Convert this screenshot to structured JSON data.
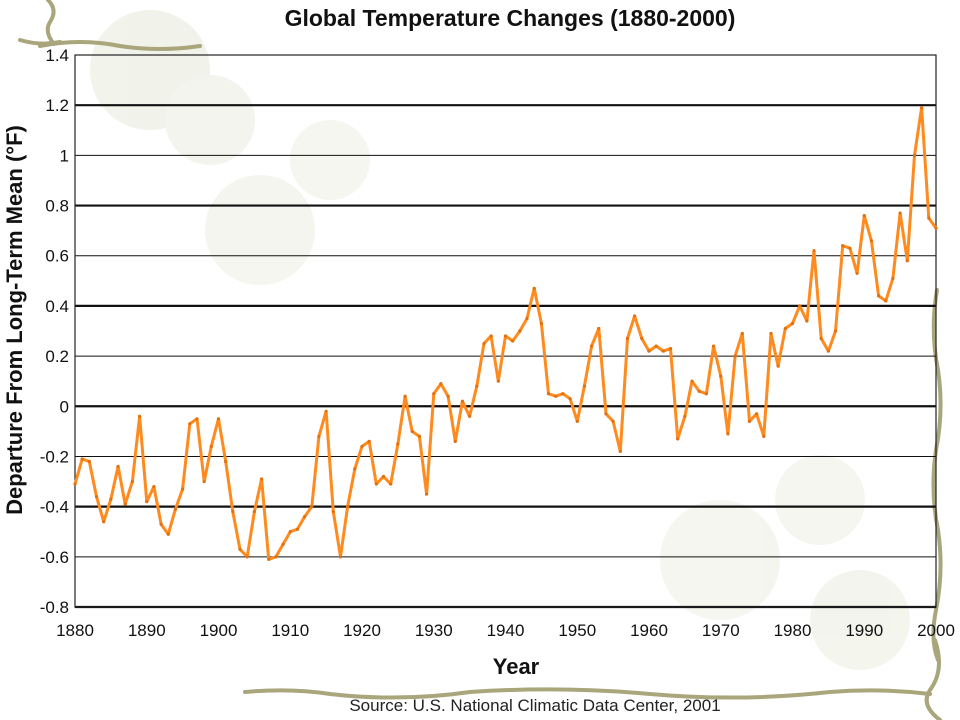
{
  "chart_data": {
    "type": "line",
    "title": "Global Temperature Changes (1880-2000)",
    "xlabel": "Year",
    "ylabel": "Departure From Long-Term Mean (°F)",
    "source": "Source: U.S. National Climatic Data Center, 2001",
    "xlim": [
      1880,
      2000
    ],
    "ylim": [
      -0.8,
      1.4
    ],
    "grid": true,
    "x_ticks": [
      "1880",
      "1890",
      "1900",
      "1910",
      "1920",
      "1930",
      "1940",
      "1950",
      "1960",
      "1970",
      "1980",
      "1990",
      "2000"
    ],
    "y_ticks": [
      "1.4",
      "1.2",
      "1",
      "0.8",
      "0.6",
      "0.4",
      "0.2",
      "0",
      "-0.2",
      "-0.4",
      "-0.6",
      "-0.8"
    ],
    "series": [
      {
        "color": "#ff8a1e",
        "x": [
          1880,
          1881,
          1882,
          1883,
          1884,
          1885,
          1886,
          1887,
          1888,
          1889,
          1890,
          1891,
          1892,
          1893,
          1894,
          1895,
          1896,
          1897,
          1898,
          1899,
          1900,
          1901,
          1902,
          1903,
          1904,
          1905,
          1906,
          1907,
          1908,
          1909,
          1910,
          1911,
          1912,
          1913,
          1914,
          1915,
          1916,
          1917,
          1918,
          1919,
          1920,
          1921,
          1922,
          1923,
          1924,
          1925,
          1926,
          1927,
          1928,
          1929,
          1930,
          1931,
          1932,
          1933,
          1934,
          1935,
          1936,
          1937,
          1938,
          1939,
          1940,
          1941,
          1942,
          1943,
          1944,
          1945,
          1946,
          1947,
          1948,
          1949,
          1950,
          1951,
          1952,
          1953,
          1954,
          1955,
          1956,
          1957,
          1958,
          1959,
          1960,
          1961,
          1962,
          1963,
          1964,
          1965,
          1966,
          1967,
          1968,
          1969,
          1970,
          1971,
          1972,
          1973,
          1974,
          1975,
          1976,
          1977,
          1978,
          1979,
          1980,
          1981,
          1982,
          1983,
          1984,
          1985,
          1986,
          1987,
          1988,
          1989,
          1990,
          1991,
          1992,
          1993,
          1994,
          1995,
          1996,
          1997,
          1998,
          1999,
          2000
        ],
        "y": [
          -0.31,
          -0.21,
          -0.22,
          -0.36,
          -0.46,
          -0.37,
          -0.24,
          -0.39,
          -0.3,
          -0.04,
          -0.38,
          -0.32,
          -0.47,
          -0.51,
          -0.41,
          -0.33,
          -0.07,
          -0.05,
          -0.3,
          -0.16,
          -0.05,
          -0.22,
          -0.42,
          -0.57,
          -0.6,
          -0.42,
          -0.29,
          -0.61,
          -0.6,
          -0.55,
          -0.5,
          -0.49,
          -0.44,
          -0.4,
          -0.12,
          -0.02,
          -0.42,
          -0.6,
          -0.4,
          -0.25,
          -0.16,
          -0.14,
          -0.31,
          -0.28,
          -0.31,
          -0.15,
          0.04,
          -0.1,
          -0.12,
          -0.35,
          0.05,
          0.09,
          0.04,
          -0.14,
          0.02,
          -0.04,
          0.08,
          0.25,
          0.28,
          0.1,
          0.28,
          0.26,
          0.3,
          0.35,
          0.47,
          0.33,
          0.05,
          0.04,
          0.05,
          0.03,
          -0.06,
          0.08,
          0.24,
          0.31,
          -0.03,
          -0.06,
          -0.18,
          0.27,
          0.36,
          0.27,
          0.22,
          0.24,
          0.22,
          0.23,
          -0.13,
          -0.04,
          0.1,
          0.06,
          0.05,
          0.24,
          0.12,
          -0.11,
          0.2,
          0.29,
          -0.06,
          -0.03,
          -0.12,
          0.29,
          0.16,
          0.31,
          0.33,
          0.4,
          0.34,
          0.62,
          0.27,
          0.22,
          0.3,
          0.64,
          0.63,
          0.53,
          0.76,
          0.66,
          0.44,
          0.42,
          0.51,
          0.77,
          0.58,
          1.0,
          1.19,
          0.75,
          0.71
        ]
      }
    ]
  }
}
